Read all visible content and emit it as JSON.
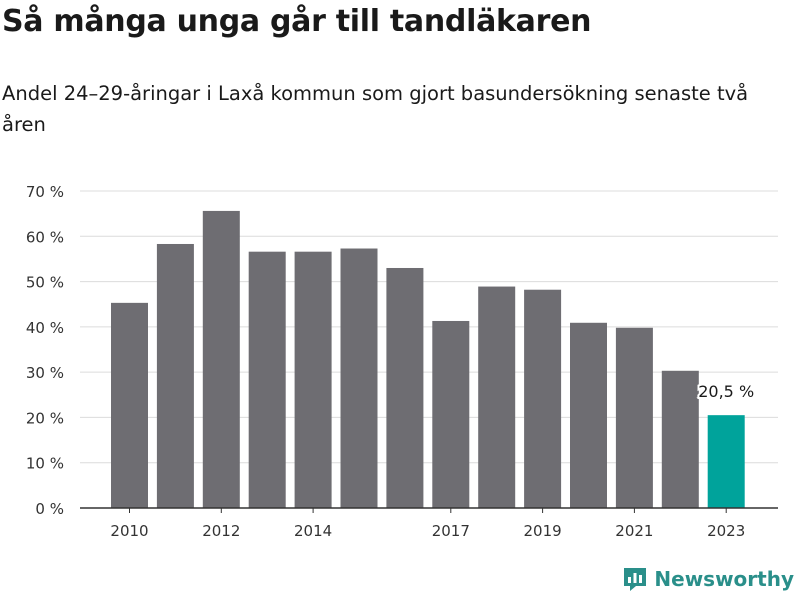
{
  "header": {
    "title": "Så många unga går till tandläkaren",
    "subtitle": "Andel 24–29-åringar i Laxå kommun som gjort basundersökning senaste två åren"
  },
  "branding": {
    "name": "Newsworthy",
    "icon": "newsworthy-logo-icon",
    "color": "#2a8f8a"
  },
  "chart_data": {
    "type": "bar",
    "categories": [
      "2010",
      "2011",
      "2012",
      "2013",
      "2014",
      "2015",
      "2016",
      "2017",
      "2018",
      "2019",
      "2020",
      "2021",
      "2022",
      "2023"
    ],
    "x_tick_labels": [
      "2010",
      "2012",
      "2014",
      "2017",
      "2019",
      "2021",
      "2023"
    ],
    "values": [
      45.3,
      58.3,
      65.6,
      56.6,
      56.6,
      57.3,
      53.0,
      41.3,
      48.9,
      48.2,
      40.9,
      39.8,
      30.3,
      20.5
    ],
    "highlight": {
      "category": "2023",
      "label": "20,5 %"
    },
    "y_ticks": [
      "0 %",
      "10 %",
      "20 %",
      "30 %",
      "40 %",
      "50 %",
      "60 %",
      "70 %"
    ],
    "ylim": [
      0,
      70
    ],
    "grid": true,
    "colors": {
      "bar": "#6e6d72",
      "highlight": "#00a39b",
      "grid": "#dcdcdc",
      "axis": "#333333"
    },
    "title": "",
    "xlabel": "",
    "ylabel": ""
  }
}
